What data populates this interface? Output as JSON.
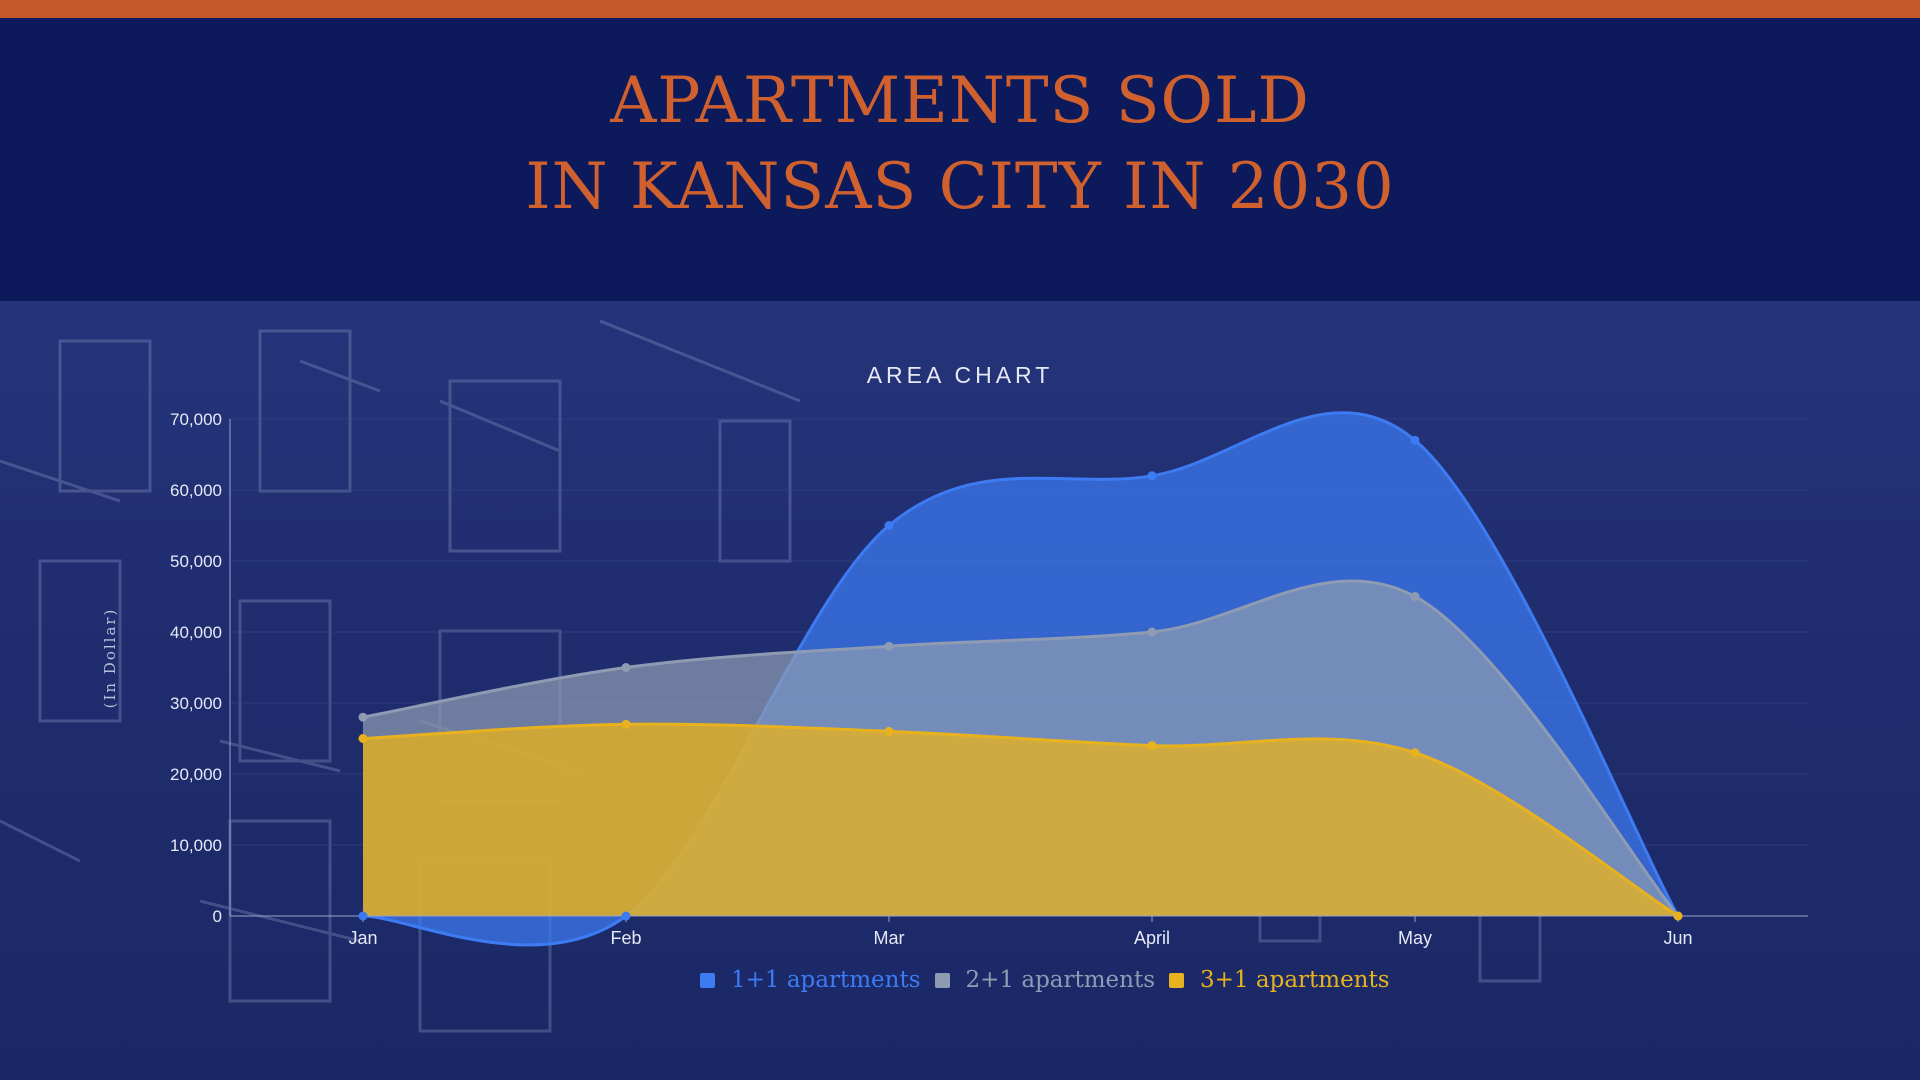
{
  "header": {
    "title_line1": "APARTMENTS SOLD",
    "title_line2": "IN KANSAS CITY IN 2030",
    "accent_color": "#c4582a"
  },
  "chart_data": {
    "type": "area",
    "title": "AREA CHART",
    "ylabel": "(In Dollar)",
    "xlabel": "",
    "categories": [
      "Jan",
      "Feb",
      "Mar",
      "April",
      "May",
      "Jun"
    ],
    "ylim": [
      0,
      70000
    ],
    "yticks": [
      "0",
      "10,000",
      "20,000",
      "30,000",
      "40,000",
      "50,000",
      "60,000",
      "70,000"
    ],
    "grid": true,
    "legend_position": "bottom",
    "series": [
      {
        "name": "1+1 apartments",
        "values": [
          0,
          0,
          55000,
          62000,
          67000,
          0
        ],
        "color": "#3d7bf2"
      },
      {
        "name": "2+1 apartments",
        "values": [
          28000,
          35000,
          38000,
          40000,
          45000,
          0
        ],
        "color": "#8e9bb3"
      },
      {
        "name": "3+1 apartments",
        "values": [
          25000,
          27000,
          26000,
          24000,
          23000,
          0
        ],
        "color": "#e8b21e"
      }
    ]
  }
}
